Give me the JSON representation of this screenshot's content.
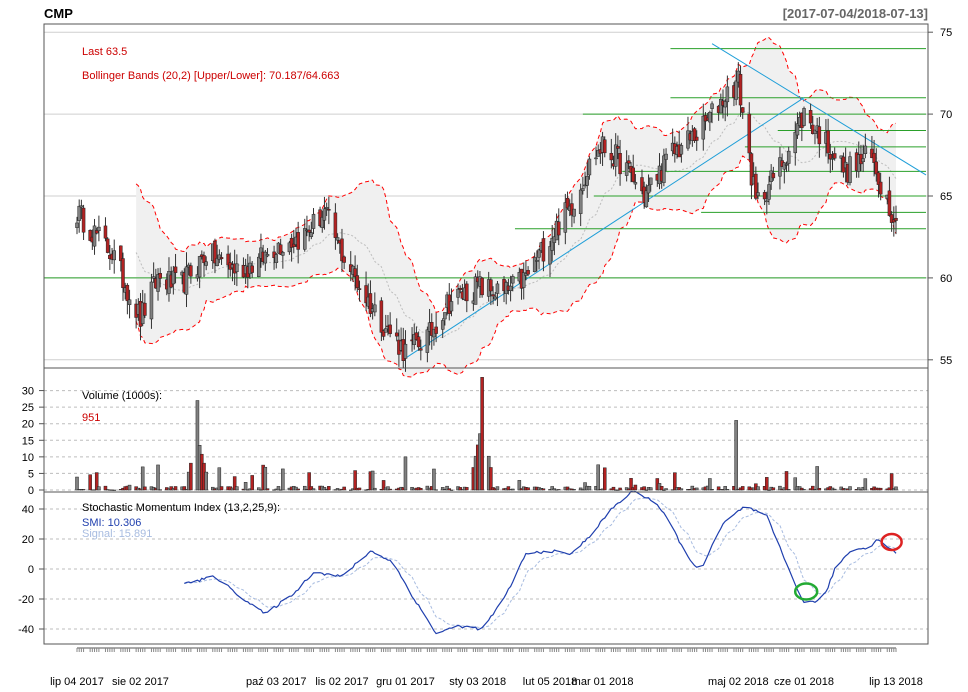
{
  "header": {
    "symbol": "CMP",
    "range": "[2017-07-04/2018-07-13]"
  },
  "price_panel": {
    "last_label": "Last 63.5",
    "bb_label": "Bollinger Bands (20,2) [Upper/Lower]: 70.187/64.663",
    "y_ticks": [
      "75",
      "70",
      "65",
      "60",
      "55"
    ]
  },
  "volume_panel": {
    "title": "Volume (1000s):",
    "last_value": "951",
    "y_ticks": [
      "30",
      "25",
      "20",
      "15",
      "10",
      "5",
      "0"
    ]
  },
  "smi_panel": {
    "title": "Stochastic Momentum Index (13,2,25,9):",
    "smi_label": "SMI: 10.306",
    "signal_label": "Signal: 15.891",
    "y_ticks": [
      "40",
      "20",
      "0",
      "-20",
      "-40"
    ]
  },
  "x_axis": {
    "labels": [
      "lip 04 2017",
      "sie 02 2017",
      "paź 03 2017",
      "lis 02 2017",
      "gru 01 2017",
      "sty 03 2018",
      "lut 05 2018",
      "mar 01 2018",
      "maj 02 2018",
      "cze 01 2018",
      "lip 13 2018"
    ]
  },
  "colors": {
    "up": "#808080",
    "down": "#b22222",
    "bb_band": "#ff0000",
    "bb_fill": "#f0f0f0",
    "trendline": "#1e9ed8",
    "support": "#2aa02a",
    "smi": "#1f3fae",
    "signal": "#a8bce0",
    "circle_red": "#dd2222",
    "circle_green": "#22aa33",
    "label_red": "#cc0000"
  },
  "chart_data": {
    "type": "candlestick",
    "title": "CMP",
    "date_range": "2017-07-04/2018-07-13",
    "price_ylim": [
      54.5,
      75.5
    ],
    "last": 63.5,
    "bollinger": {
      "period": 20,
      "sd": 2,
      "upper": 70.187,
      "lower": 64.663
    },
    "horizontal_lines": [
      74,
      71,
      70,
      69,
      68,
      66.5,
      65,
      64,
      63,
      60
    ],
    "trendlines": [
      {
        "from": [
          "2017-12-01",
          55.1
        ],
        "to": [
          "2018-06-01",
          71.0
        ]
      },
      {
        "from": [
          "2018-04-20",
          74.3
        ],
        "to": [
          "2018-07-13",
          67.2
        ]
      }
    ],
    "close_path": [
      [
        "2017-07-04",
        64.0
      ],
      [
        "2017-07-20",
        61.5
      ],
      [
        "2017-08-02",
        57.5
      ],
      [
        "2017-08-10",
        60.0
      ],
      [
        "2017-08-20",
        59.5
      ],
      [
        "2017-09-01",
        61.5
      ],
      [
        "2017-09-15",
        60.5
      ],
      [
        "2017-09-25",
        61.0
      ],
      [
        "2017-10-03",
        62.0
      ],
      [
        "2017-10-15",
        62.5
      ],
      [
        "2017-10-25",
        64.0
      ],
      [
        "2017-11-02",
        61.5
      ],
      [
        "2017-11-12",
        59.0
      ],
      [
        "2017-11-22",
        57.0
      ],
      [
        "2017-12-01",
        55.5
      ],
      [
        "2017-12-12",
        56.5
      ],
      [
        "2017-12-20",
        58.5
      ],
      [
        "2018-01-03",
        59.5
      ],
      [
        "2018-01-15",
        59.0
      ],
      [
        "2018-01-25",
        60.0
      ],
      [
        "2018-02-05",
        62.5
      ],
      [
        "2018-02-15",
        64.5
      ],
      [
        "2018-02-25",
        67.5
      ],
      [
        "2018-03-01",
        68.0
      ],
      [
        "2018-03-10",
        67.0
      ],
      [
        "2018-03-20",
        65.0
      ],
      [
        "2018-04-01",
        67.5
      ],
      [
        "2018-04-15",
        69.0
      ],
      [
        "2018-04-25",
        71.0
      ],
      [
        "2018-05-02",
        72.0
      ],
      [
        "2018-05-10",
        64.5
      ],
      [
        "2018-05-20",
        66.5
      ],
      [
        "2018-06-01",
        70.0
      ],
      [
        "2018-06-10",
        68.5
      ],
      [
        "2018-06-20",
        66.5
      ],
      [
        "2018-07-01",
        67.5
      ],
      [
        "2018-07-13",
        63.5
      ]
    ],
    "volume_ylim": [
      0,
      35
    ],
    "volume_unit": "1000s",
    "volume_last": 951,
    "volume_peaks": [
      {
        "date": "2017-08-28",
        "value": 27
      },
      {
        "date": "2017-12-01",
        "value": 10
      },
      {
        "date": "2018-01-05",
        "value": 34
      },
      {
        "date": "2018-05-01",
        "value": 21
      }
    ],
    "smi_ylim": [
      -50,
      50
    ],
    "smi": {
      "params": "13,2,25,9",
      "last": 10.306
    },
    "signal": {
      "last": 15.891
    },
    "smi_path": [
      [
        "2017-08-22",
        -10
      ],
      [
        "2017-09-05",
        -5
      ],
      [
        "2017-09-20",
        -22
      ],
      [
        "2017-09-28",
        -30
      ],
      [
        "2017-10-12",
        -15
      ],
      [
        "2017-10-20",
        -2
      ],
      [
        "2017-11-02",
        -5
      ],
      [
        "2017-11-15",
        12
      ],
      [
        "2017-11-25",
        5
      ],
      [
        "2017-12-05",
        -20
      ],
      [
        "2017-12-15",
        -43
      ],
      [
        "2017-12-25",
        -38
      ],
      [
        "2018-01-05",
        -40
      ],
      [
        "2018-01-15",
        -20
      ],
      [
        "2018-01-25",
        10
      ],
      [
        "2018-02-05",
        12
      ],
      [
        "2018-02-15",
        10
      ],
      [
        "2018-02-25",
        25
      ],
      [
        "2018-03-05",
        40
      ],
      [
        "2018-03-15",
        52
      ],
      [
        "2018-03-25",
        45
      ],
      [
        "2018-04-01",
        30
      ],
      [
        "2018-04-10",
        5
      ],
      [
        "2018-04-15",
        0
      ],
      [
        "2018-04-25",
        30
      ],
      [
        "2018-05-05",
        42
      ],
      [
        "2018-05-15",
        35
      ],
      [
        "2018-05-25",
        0
      ],
      [
        "2018-06-01",
        -23
      ],
      [
        "2018-06-10",
        -20
      ],
      [
        "2018-06-15",
        0
      ],
      [
        "2018-06-22",
        12
      ],
      [
        "2018-07-01",
        15
      ],
      [
        "2018-07-05",
        20
      ],
      [
        "2018-07-13",
        10.3
      ]
    ],
    "grid": true
  }
}
